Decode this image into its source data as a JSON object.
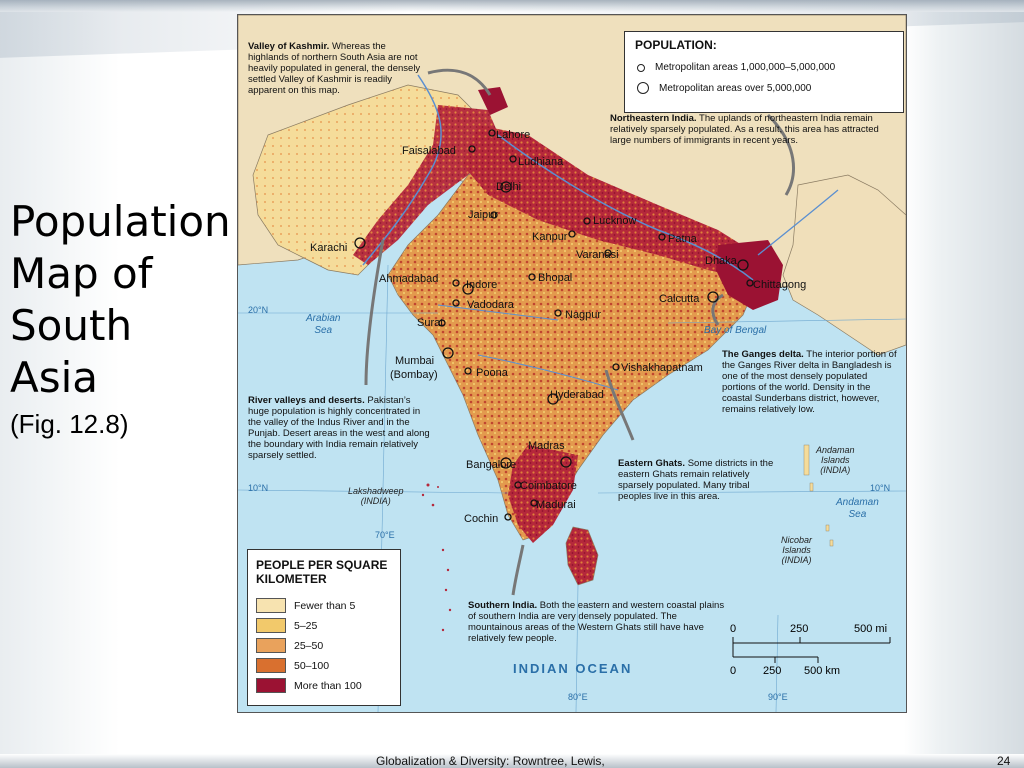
{
  "slide": {
    "title_lines": [
      "Population",
      "Map of",
      "South",
      "Asia"
    ],
    "figure_ref": "(Fig. 12.8)",
    "footer": "Globalization & Diversity: Rowntree, Lewis,",
    "page_number": "24"
  },
  "population_legend": {
    "title": "POPULATION:",
    "items": [
      {
        "symbol": "small-circle-icon",
        "label": "Metropolitan areas 1,000,000–5,000,000"
      },
      {
        "symbol": "large-circle-icon",
        "label": "Metropolitan areas over 5,000,000"
      }
    ]
  },
  "density_legend": {
    "title": "PEOPLE PER SQUARE KILOMETER",
    "items": [
      {
        "label": "Fewer than 5",
        "color": "#f7e3b0"
      },
      {
        "label": "5–25",
        "color": "#f2c96b"
      },
      {
        "label": "25–50",
        "color": "#e9a25c"
      },
      {
        "label": "50–100",
        "color": "#d9702f"
      },
      {
        "label": "More than 100",
        "color": "#9b1233"
      }
    ]
  },
  "colors": {
    "sea": "#bfe3f2",
    "land_outside": "#efe0bd",
    "river": "#5b8fd0"
  },
  "cities": [
    "Lahore",
    "Faisalabad",
    "Ludhiana",
    "Delhi",
    "Jaipur",
    "Lucknow",
    "Kanpur",
    "Patna",
    "Varanasi",
    "Dhaka",
    "Karachi",
    "Ahmadabad",
    "Indore",
    "Bhopal",
    "Vadodara",
    "Surat",
    "Calcutta",
    "Chittagong",
    "Nagpur",
    "Mumbai",
    "(Bombay)",
    "Poona",
    "Vishakhapatnam",
    "Hyderabad",
    "Madras",
    "Bangalore",
    "Coimbatore",
    "Madurai",
    "Cochin"
  ],
  "water_labels": {
    "arabian_sea": [
      "Arabian",
      "Sea"
    ],
    "bay_of_bengal": "Bay of Bengal",
    "indian_ocean": "INDIAN OCEAN",
    "andaman_sea": [
      "Andaman",
      "Sea"
    ]
  },
  "islands": {
    "lakshadweep": [
      "Lakshadweep",
      "(INDIA)"
    ],
    "andaman": [
      "Andaman",
      "Islands",
      "(INDIA)"
    ],
    "nicobar": [
      "Nicobar",
      "Islands",
      "(INDIA)"
    ]
  },
  "coordinates": {
    "lat_20": "20°N",
    "lat_10_left": "10°N",
    "lat_10_right": "10°N",
    "lon_70": "70°E",
    "lon_80": "80°E",
    "lon_90": "90°E"
  },
  "annotations": {
    "kashmir": {
      "title": "Valley of Kashmir.",
      "body": "Whereas the highlands of northern South Asia are not heavily populated in general, the densely settled Valley of Kashmir is readily apparent on this map."
    },
    "northeast": {
      "title": "Northeastern India.",
      "body": "The uplands of northeastern India remain relatively sparsely populated.  As a result, this area has attracted large numbers of immigrants in recent years."
    },
    "ganges": {
      "title": "The Ganges delta.",
      "body": "The interior portion of the Ganges River delta in Bangladesh is one of the most densely populated portions of the world. Density in the coastal Sunderbans district, however, remains relatively low."
    },
    "river_valleys": {
      "title": "River valleys and deserts.",
      "body": "Pakistan’s huge population is highly concentrated in the valley of the Indus River and in the Punjab. Desert areas in the west and along the boundary with India remain relatively sparsely settled."
    },
    "eastern_ghats": {
      "title": "Eastern Ghats.",
      "body": "Some districts in the eastern Ghats remain relatively sparsely populated. Many tribal peoples live in this area."
    },
    "southern_india": {
      "title": "Southern India.",
      "body": "Both the eastern and western coastal plains of southern India are very densely populated. The mountainous areas of the Western Ghats still have have relatively few people."
    }
  },
  "scale": {
    "mi_labels": [
      "0",
      "250",
      "500 mi"
    ],
    "km_labels": [
      "0",
      "250",
      "500 km"
    ]
  }
}
